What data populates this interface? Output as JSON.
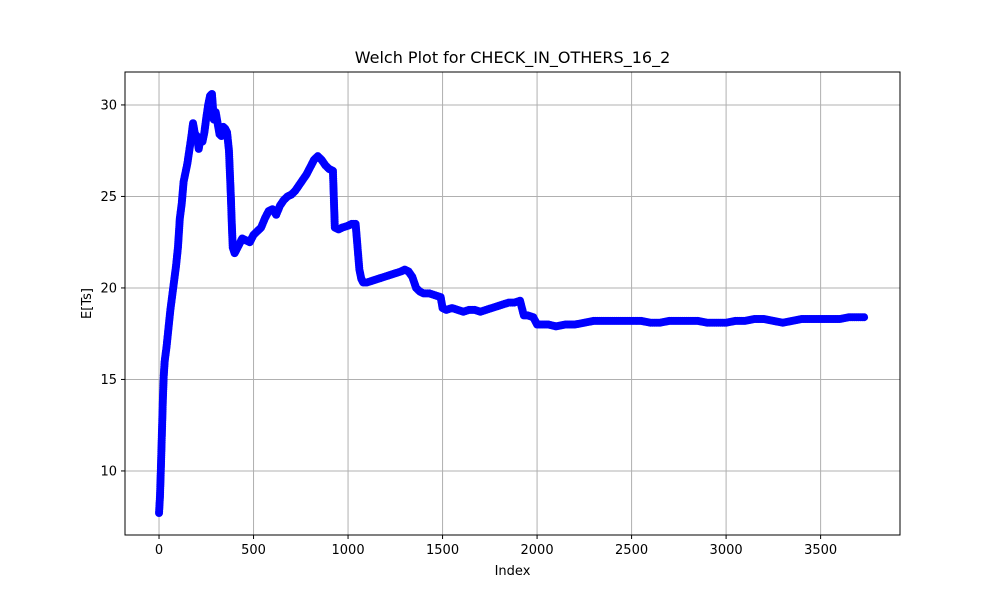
{
  "chart_data": {
    "type": "scatter",
    "title": "Welch Plot for CHECK_IN_OTHERS_16_2",
    "xlabel": "Index",
    "ylabel": "E[Ts]",
    "xlim": [
      -180,
      3920
    ],
    "ylim": [
      6.5,
      31.8
    ],
    "xticks": [
      0,
      500,
      1000,
      1500,
      2000,
      2500,
      3000,
      3500
    ],
    "yticks": [
      10,
      15,
      20,
      25,
      30
    ],
    "grid": true,
    "marker": "circle",
    "color": "#0000ff",
    "series": [
      {
        "points": [
          [
            0,
            7.7
          ],
          [
            5,
            8.6
          ],
          [
            10,
            10.2
          ],
          [
            15,
            12.0
          ],
          [
            20,
            13.8
          ],
          [
            25,
            15.2
          ],
          [
            30,
            16.0
          ],
          [
            40,
            16.8
          ],
          [
            50,
            17.8
          ],
          [
            60,
            18.8
          ],
          [
            70,
            19.6
          ],
          [
            80,
            20.4
          ],
          [
            90,
            21.2
          ],
          [
            100,
            22.2
          ],
          [
            110,
            23.8
          ],
          [
            120,
            24.6
          ],
          [
            130,
            25.8
          ],
          [
            140,
            26.3
          ],
          [
            150,
            26.8
          ],
          [
            160,
            27.5
          ],
          [
            170,
            28.2
          ],
          [
            180,
            29.0
          ],
          [
            190,
            28.4
          ],
          [
            200,
            28.3
          ],
          [
            210,
            27.6
          ],
          [
            220,
            28.2
          ],
          [
            230,
            28.0
          ],
          [
            240,
            28.5
          ],
          [
            250,
            29.3
          ],
          [
            260,
            30.0
          ],
          [
            270,
            30.5
          ],
          [
            280,
            30.6
          ],
          [
            290,
            29.2
          ],
          [
            300,
            29.6
          ],
          [
            310,
            29.0
          ],
          [
            320,
            28.4
          ],
          [
            330,
            28.3
          ],
          [
            340,
            28.8
          ],
          [
            350,
            28.7
          ],
          [
            360,
            28.5
          ],
          [
            370,
            27.5
          ],
          [
            380,
            25.0
          ],
          [
            385,
            23.5
          ],
          [
            390,
            22.2
          ],
          [
            400,
            21.9
          ],
          [
            420,
            22.3
          ],
          [
            440,
            22.7
          ],
          [
            460,
            22.6
          ],
          [
            480,
            22.5
          ],
          [
            500,
            22.9
          ],
          [
            520,
            23.1
          ],
          [
            540,
            23.3
          ],
          [
            560,
            23.8
          ],
          [
            580,
            24.2
          ],
          [
            600,
            24.3
          ],
          [
            620,
            24.0
          ],
          [
            640,
            24.5
          ],
          [
            660,
            24.8
          ],
          [
            680,
            25.0
          ],
          [
            700,
            25.1
          ],
          [
            720,
            25.3
          ],
          [
            740,
            25.6
          ],
          [
            760,
            25.9
          ],
          [
            780,
            26.2
          ],
          [
            800,
            26.6
          ],
          [
            820,
            27.0
          ],
          [
            840,
            27.2
          ],
          [
            860,
            27.0
          ],
          [
            880,
            26.7
          ],
          [
            900,
            26.5
          ],
          [
            920,
            26.4
          ],
          [
            930,
            23.3
          ],
          [
            950,
            23.2
          ],
          [
            970,
            23.3
          ],
          [
            1000,
            23.4
          ],
          [
            1020,
            23.5
          ],
          [
            1040,
            23.5
          ],
          [
            1060,
            21.0
          ],
          [
            1070,
            20.5
          ],
          [
            1080,
            20.3
          ],
          [
            1100,
            20.3
          ],
          [
            1130,
            20.4
          ],
          [
            1160,
            20.5
          ],
          [
            1190,
            20.6
          ],
          [
            1220,
            20.7
          ],
          [
            1250,
            20.8
          ],
          [
            1280,
            20.9
          ],
          [
            1300,
            21.0
          ],
          [
            1320,
            20.9
          ],
          [
            1340,
            20.6
          ],
          [
            1360,
            20.0
          ],
          [
            1380,
            19.8
          ],
          [
            1400,
            19.7
          ],
          [
            1430,
            19.7
          ],
          [
            1460,
            19.6
          ],
          [
            1490,
            19.5
          ],
          [
            1500,
            18.9
          ],
          [
            1520,
            18.8
          ],
          [
            1550,
            18.9
          ],
          [
            1580,
            18.8
          ],
          [
            1610,
            18.7
          ],
          [
            1640,
            18.8
          ],
          [
            1670,
            18.8
          ],
          [
            1700,
            18.7
          ],
          [
            1730,
            18.8
          ],
          [
            1760,
            18.9
          ],
          [
            1790,
            19.0
          ],
          [
            1820,
            19.1
          ],
          [
            1850,
            19.2
          ],
          [
            1880,
            19.2
          ],
          [
            1910,
            19.3
          ],
          [
            1930,
            18.5
          ],
          [
            1950,
            18.5
          ],
          [
            1980,
            18.4
          ],
          [
            2000,
            18.0
          ],
          [
            2030,
            18.0
          ],
          [
            2060,
            18.0
          ],
          [
            2100,
            17.9
          ],
          [
            2150,
            18.0
          ],
          [
            2200,
            18.0
          ],
          [
            2250,
            18.1
          ],
          [
            2300,
            18.2
          ],
          [
            2350,
            18.2
          ],
          [
            2400,
            18.2
          ],
          [
            2450,
            18.2
          ],
          [
            2500,
            18.2
          ],
          [
            2550,
            18.2
          ],
          [
            2600,
            18.1
          ],
          [
            2650,
            18.1
          ],
          [
            2700,
            18.2
          ],
          [
            2750,
            18.2
          ],
          [
            2800,
            18.2
          ],
          [
            2850,
            18.2
          ],
          [
            2900,
            18.1
          ],
          [
            2950,
            18.1
          ],
          [
            3000,
            18.1
          ],
          [
            3050,
            18.2
          ],
          [
            3100,
            18.2
          ],
          [
            3150,
            18.3
          ],
          [
            3200,
            18.3
          ],
          [
            3250,
            18.2
          ],
          [
            3300,
            18.1
          ],
          [
            3350,
            18.2
          ],
          [
            3400,
            18.3
          ],
          [
            3450,
            18.3
          ],
          [
            3500,
            18.3
          ],
          [
            3550,
            18.3
          ],
          [
            3600,
            18.3
          ],
          [
            3650,
            18.4
          ],
          [
            3700,
            18.4
          ],
          [
            3730,
            18.4
          ]
        ]
      }
    ]
  }
}
